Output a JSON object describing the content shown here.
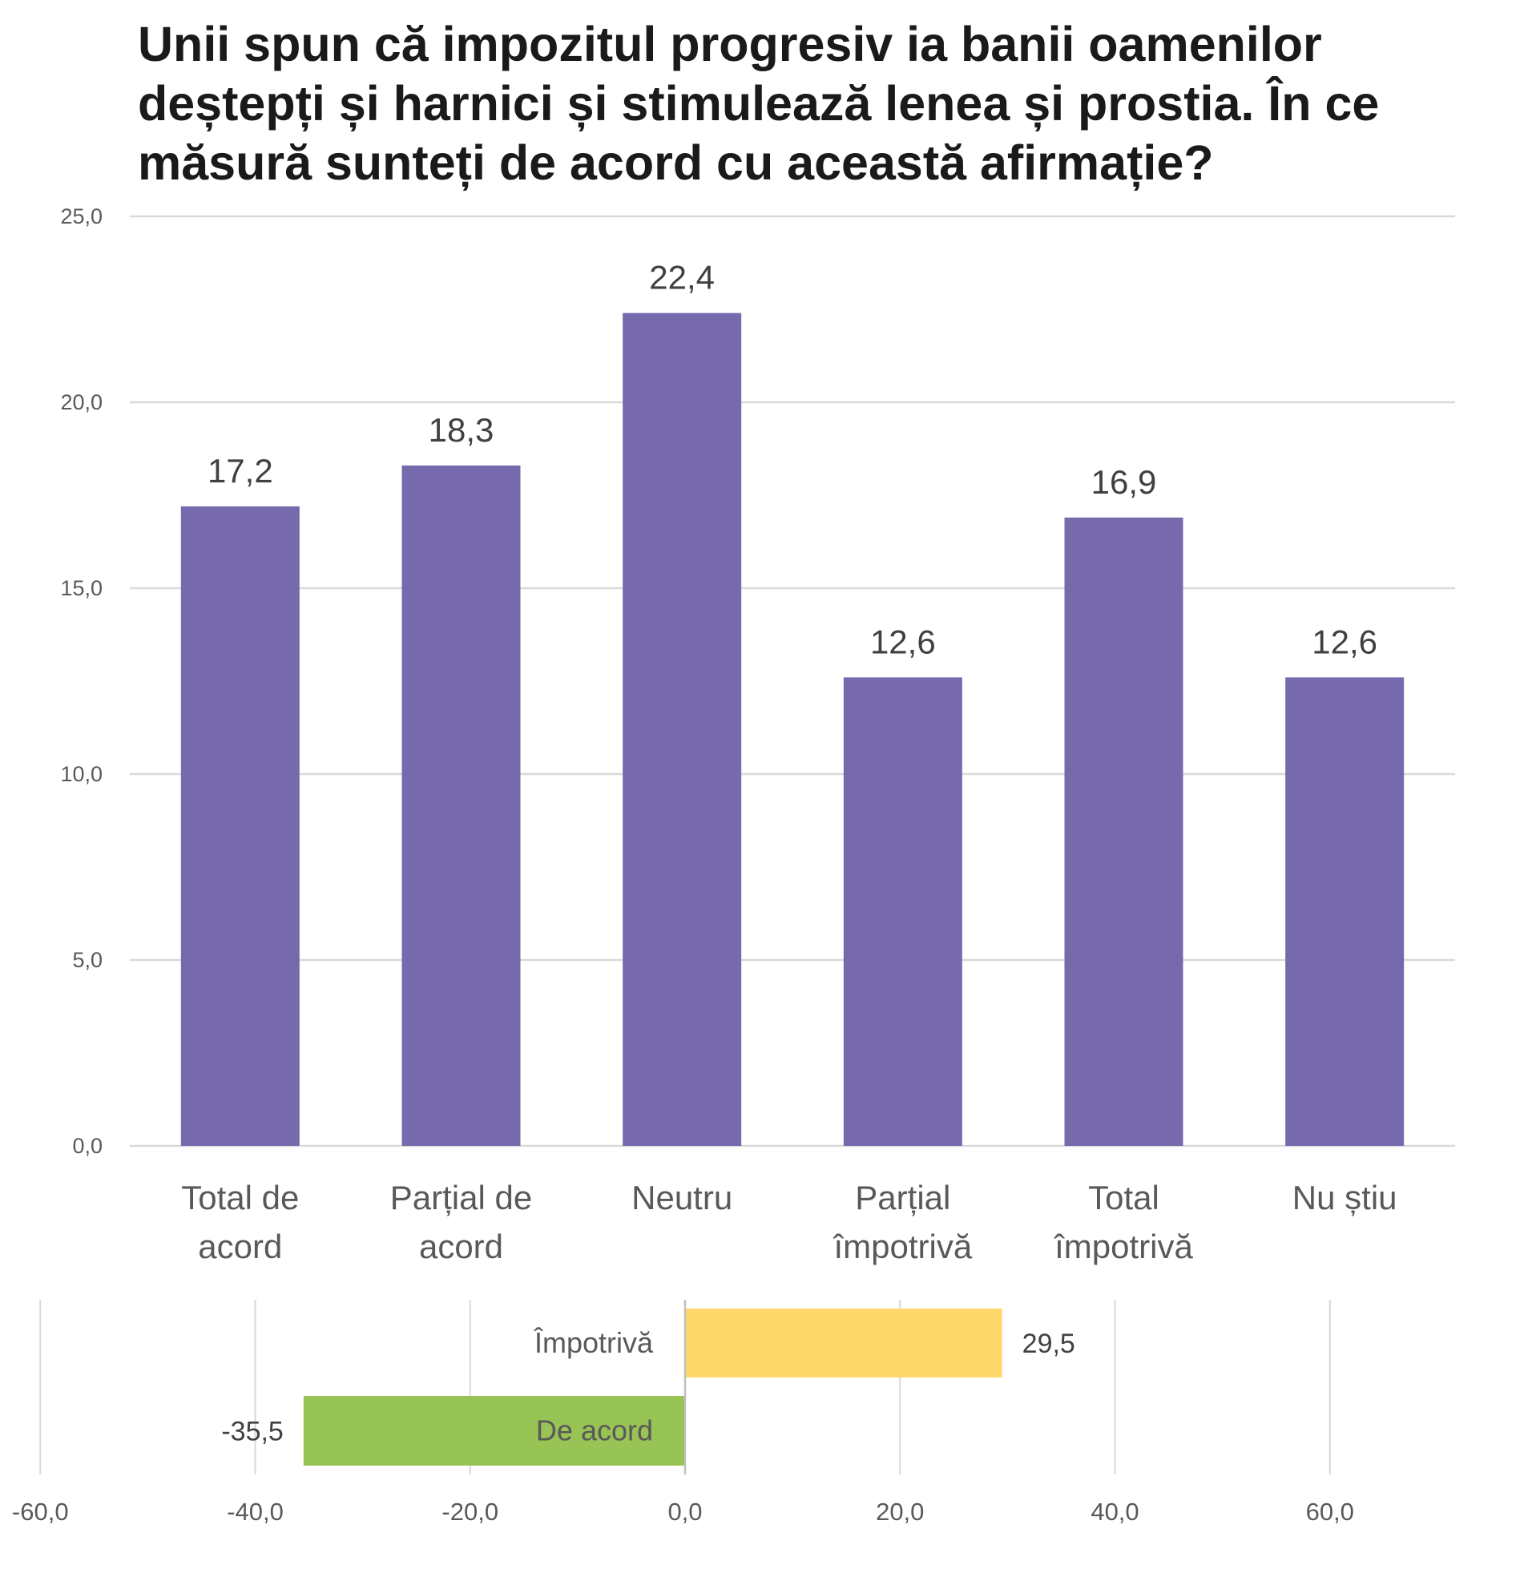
{
  "title": "Unii spun că impozitul progresiv ia banii oamenilor deștepți și harnici și stimulează lenea și prostia. În ce măsură sunteți de acord cu această afirmație?",
  "chart_data": [
    {
      "type": "bar",
      "categories": [
        [
          "Total de",
          "acord"
        ],
        [
          "Parțial de",
          "acord"
        ],
        [
          "Neutru"
        ],
        [
          "Parțial",
          "împotrivă"
        ],
        [
          "Total",
          "împotrivă"
        ],
        [
          "Nu știu"
        ]
      ],
      "values": [
        17.2,
        18.3,
        22.4,
        12.6,
        16.9,
        12.6
      ],
      "data_labels": [
        "17,2",
        "18,3",
        "22,4",
        "12,6",
        "16,9",
        "12,6"
      ],
      "ylim": [
        0,
        25
      ],
      "y_ticks": [
        0,
        5,
        10,
        15,
        20,
        25
      ],
      "y_tick_labels": [
        "0,0",
        "5,0",
        "10,0",
        "15,0",
        "20,0",
        "25,0"
      ],
      "color": "#7669AC",
      "grid": true,
      "legend": "none"
    },
    {
      "type": "bar",
      "orientation": "horizontal",
      "categories": [
        "Împotrivă",
        "De acord"
      ],
      "values": [
        29.5,
        -35.5
      ],
      "data_labels": [
        "29,5",
        "-35,5"
      ],
      "colors": [
        "#FDD86A",
        "#98C355"
      ],
      "xlim": [
        -60,
        60
      ],
      "x_ticks": [
        -60,
        -40,
        -20,
        0,
        20,
        40,
        60
      ],
      "x_tick_labels": [
        "-60,0",
        "-40,0",
        "-20,0",
        "0,0",
        "20,0",
        "40,0",
        "60,0"
      ],
      "grid": true,
      "legend": "none"
    }
  ]
}
